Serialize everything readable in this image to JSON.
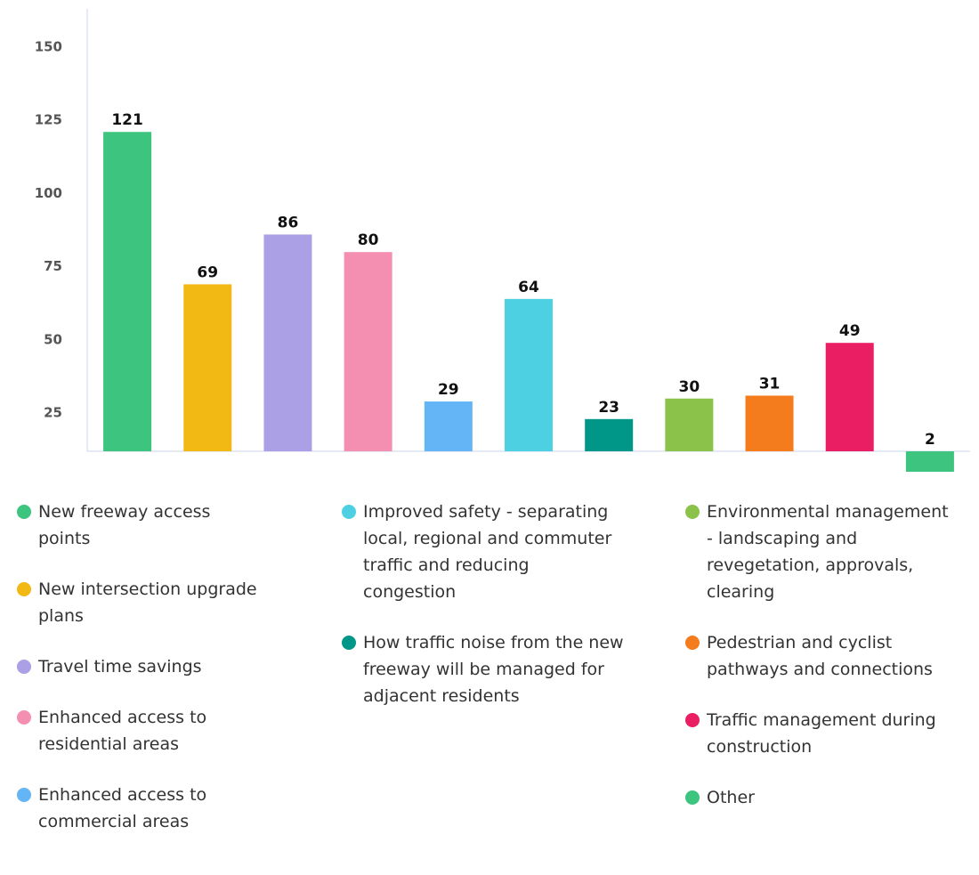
{
  "chart_data": {
    "type": "bar",
    "categories": [
      "New freeway access points",
      "New intersection upgrade plans",
      "Travel time savings",
      "Enhanced access to residential areas",
      "Enhanced access to commercial areas",
      "Improved safety - separating local, regional and commuter traffic and reducing congestion",
      "How traffic noise from the new freeway will be managed for adjacent residents",
      "Environmental management - landscaping and revegetation, approvals, clearing",
      "Pedestrian and cyclist pathways and connections",
      "Traffic management during construction",
      "Other"
    ],
    "values": [
      121,
      69,
      86,
      80,
      29,
      64,
      23,
      30,
      31,
      49,
      2
    ],
    "colors": [
      "#3dc47e",
      "#f2b914",
      "#ab9fe6",
      "#f48fb1",
      "#64b5f6",
      "#4dd0e1",
      "#009688",
      "#8bc34a",
      "#f47c1c",
      "#e91e63",
      "#3dc47e"
    ],
    "ylim": [
      12,
      163
    ],
    "yticks": [
      25,
      50,
      75,
      100,
      125,
      150
    ],
    "grid": false
  }
}
